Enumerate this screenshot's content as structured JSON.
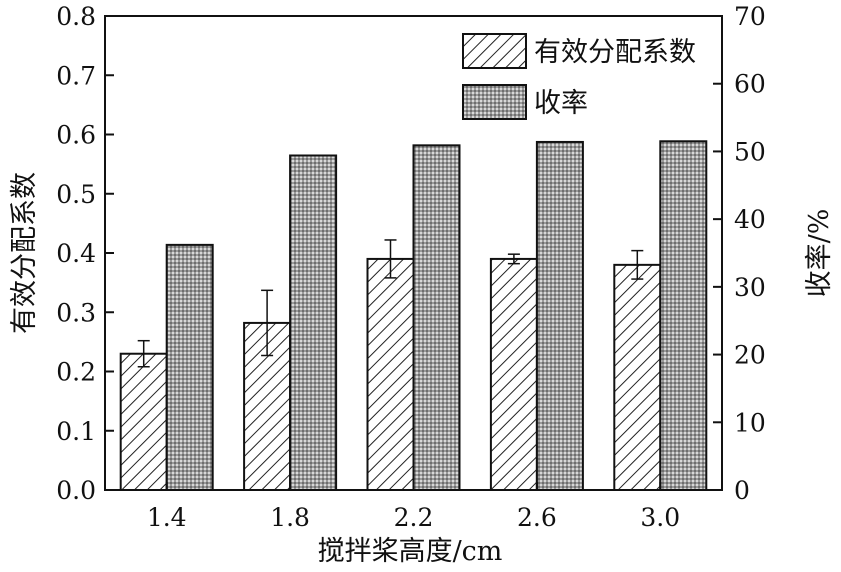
{
  "chart_data": {
    "type": "bar",
    "xlabel": "搅拌桨高度/cm",
    "ylabel_left": "有效分配系数",
    "ylabel_right": "收率/%",
    "categories": [
      "1.4",
      "1.8",
      "2.2",
      "2.6",
      "3.0"
    ],
    "ylim_left": [
      0,
      0.8
    ],
    "ylim_right": [
      0,
      70
    ],
    "yticks_left": [
      "0.0",
      "0.1",
      "0.2",
      "0.3",
      "0.4",
      "0.5",
      "0.6",
      "0.7",
      "0.8"
    ],
    "yticks_right": [
      "0",
      "10",
      "20",
      "30",
      "40",
      "50",
      "60",
      "70"
    ],
    "series": [
      {
        "name": "有效分配系数",
        "axis": "left",
        "pattern": "diagonal-hatch",
        "values": [
          0.23,
          0.282,
          0.39,
          0.39,
          0.38
        ],
        "errors": [
          0.022,
          0.055,
          0.032,
          0.008,
          0.024
        ]
      },
      {
        "name": "收率",
        "axis": "right",
        "pattern": "crosshatch-grid",
        "values": [
          36.2,
          49.4,
          50.9,
          51.4,
          51.5
        ]
      }
    ],
    "legend_position": "top-right",
    "grid": false
  }
}
